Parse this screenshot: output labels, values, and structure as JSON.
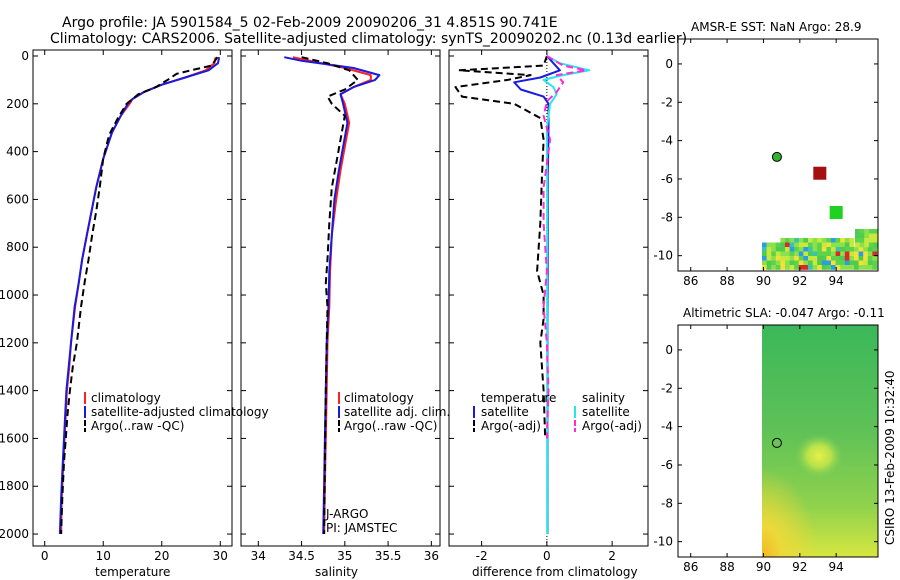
{
  "header": {
    "title1": "Argo profile: JA 5901584_5 02-Feb-2009 20090206_31 4.851S 90.741E",
    "title2": "Climatology: CARS2006. Satellite-adjusted climatology: synTS_20090202.nc (0.13d earlier)"
  },
  "side_label": "CSIRO 13-Feb-2009 10:32:40",
  "colors": {
    "climatology": "#ff2020",
    "satellite": "#1a1adf",
    "argo": "#000000",
    "sal_satellite": "#28e6ea",
    "sal_argo": "#ff2bd6"
  },
  "chart_data": [
    {
      "type": "line",
      "xlabel": "temperature",
      "ylabel": "",
      "xlim": [
        -2,
        32
      ],
      "ylim": [
        2050,
        0
      ],
      "xticks": [
        0,
        10,
        20,
        30
      ],
      "yticks": [
        0,
        200,
        400,
        600,
        800,
        1000,
        1200,
        1400,
        1600,
        1800,
        2000
      ],
      "legend": [
        "climatology",
        "satellite-adjusted climatology",
        "Argo(..raw -QC)"
      ],
      "series": [
        {
          "name": "climatology",
          "style": "solid",
          "color_key": "climatology",
          "x": [
            29.2,
            29,
            27.5,
            24,
            20,
            17,
            15,
            14.5,
            13,
            11.5,
            10,
            8.8,
            8,
            7.2,
            6.4,
            5.8,
            5.2,
            4.5,
            4.2,
            3.8,
            3.6,
            3.4,
            3.2,
            2.9,
            2.8
          ],
          "y": [
            5,
            30,
            60,
            90,
            120,
            150,
            180,
            200,
            250,
            320,
            430,
            550,
            650,
            750,
            850,
            950,
            1050,
            1200,
            1300,
            1400,
            1500,
            1600,
            1700,
            1850,
            2000
          ]
        },
        {
          "name": "satellite-adjusted climatology",
          "style": "solid",
          "color_key": "satellite",
          "x": [
            29.8,
            29.6,
            28,
            24,
            20,
            17,
            15,
            14.2,
            13,
            11.5,
            10,
            8.8,
            8,
            7.2,
            6.4,
            5.8,
            5.1,
            4.5,
            4.1,
            3.7,
            3.5,
            3.3,
            3.1,
            2.8,
            2.6
          ],
          "y": [
            5,
            30,
            60,
            90,
            120,
            150,
            180,
            200,
            250,
            320,
            430,
            550,
            650,
            750,
            850,
            950,
            1050,
            1200,
            1300,
            1400,
            1500,
            1600,
            1700,
            1850,
            2000
          ]
        },
        {
          "name": "Argo(..raw -QC)",
          "style": "dashed",
          "color_key": "argo",
          "x": [
            29.5,
            28.5,
            25,
            22.5,
            21,
            19,
            16,
            14,
            12.5,
            11,
            10,
            9.4,
            8.8,
            8.1,
            7.5,
            6.8,
            6.2,
            5.5,
            4.8,
            4.3,
            3.9,
            3.6,
            3.3,
            3,
            2.8
          ],
          "y": [
            5,
            40,
            60,
            75,
            100,
            130,
            160,
            200,
            260,
            330,
            430,
            550,
            650,
            750,
            850,
            950,
            1050,
            1200,
            1300,
            1400,
            1500,
            1600,
            1700,
            1850,
            2000
          ]
        }
      ]
    },
    {
      "type": "line",
      "xlabel": "salinity",
      "ylabel": "",
      "xlim": [
        33.8,
        36.1
      ],
      "ylim": [
        2050,
        0
      ],
      "xticks": [
        34,
        34.5,
        35,
        35.5,
        36
      ],
      "legend": [
        "climatology",
        "satellite adj. clim.",
        "Argo(..raw -QC)"
      ],
      "notes": [
        "J-ARGO",
        "PI: JAMSTEC"
      ],
      "series": [
        {
          "name": "climatology",
          "style": "solid",
          "color_key": "climatology",
          "x": [
            34.4,
            34.6,
            35,
            35.3,
            35.3,
            35.1,
            34.95,
            35,
            35.05,
            35,
            34.95,
            34.9,
            34.85,
            34.83,
            34.82,
            34.8,
            34.79,
            34.78,
            34.77,
            34.76
          ],
          "y": [
            5,
            20,
            50,
            80,
            100,
            130,
            160,
            200,
            280,
            380,
            480,
            600,
            750,
            900,
            1050,
            1200,
            1400,
            1600,
            1800,
            2000
          ]
        },
        {
          "name": "satellite adj. clim.",
          "style": "solid",
          "color_key": "satellite",
          "x": [
            34.3,
            34.5,
            35.1,
            35.4,
            35.35,
            35.1,
            34.95,
            34.98,
            35.03,
            34.98,
            34.93,
            34.88,
            34.85,
            34.82,
            34.81,
            34.79,
            34.78,
            34.77,
            34.76,
            34.75
          ],
          "y": [
            5,
            20,
            50,
            80,
            100,
            130,
            160,
            200,
            280,
            380,
            480,
            600,
            750,
            900,
            1050,
            1200,
            1400,
            1600,
            1800,
            2000
          ]
        },
        {
          "name": "Argo(..raw -QC)",
          "style": "dashed",
          "color_key": "argo",
          "x": [
            34.5,
            34.8,
            35.05,
            35.15,
            35.0,
            34.8,
            34.85,
            35.0,
            34.95,
            34.9,
            34.85,
            34.82,
            34.8,
            34.78,
            34.8,
            34.79,
            34.78,
            34.77,
            34.76
          ],
          "y": [
            5,
            30,
            60,
            100,
            140,
            170,
            200,
            250,
            350,
            450,
            550,
            700,
            850,
            950,
            1050,
            1200,
            1400,
            1700,
            2000
          ]
        }
      ]
    },
    {
      "type": "line",
      "xlabel": "difference from climatology",
      "ylabel": "",
      "xlim": [
        -3,
        3.1
      ],
      "ylim": [
        2050,
        0
      ],
      "xticks": [
        -2,
        0,
        2
      ],
      "legend": [
        "temperature",
        "satellite",
        "Argo(-adj)",
        "salinity",
        "satellite",
        "Argo(-adj)"
      ],
      "series": [
        {
          "name": "temperature satellite",
          "style": "solid",
          "color_key": "satellite",
          "x": [
            0,
            0.2,
            0.4,
            -0.2,
            -1.0,
            -0.8,
            -0.1,
            0.05,
            0.05,
            0.04,
            0.03,
            0.03,
            0.03,
            0.02,
            0.02,
            0.02,
            0.02,
            0.02
          ],
          "y": [
            0,
            30,
            60,
            90,
            110,
            140,
            170,
            200,
            300,
            400,
            500,
            700,
            900,
            1100,
            1300,
            1500,
            1700,
            2000
          ]
        },
        {
          "name": "temperature Argo(-adj)",
          "style": "dashed",
          "color_key": "argo",
          "x": [
            0,
            -0.1,
            -2.7,
            -0.5,
            -1.2,
            -2.8,
            -2.6,
            -1.0,
            -0.2,
            -0.1,
            -0.15,
            -0.2,
            -0.3,
            -0.1,
            -0.1,
            -0.2,
            -0.1,
            -0.05
          ],
          "y": [
            0,
            40,
            60,
            80,
            100,
            130,
            170,
            200,
            260,
            350,
            500,
            700,
            900,
            1000,
            1100,
            1200,
            1400,
            1600
          ]
        },
        {
          "name": "salinity satellite",
          "style": "solid",
          "color_key": "sal_satellite",
          "x": [
            0,
            0.4,
            1.3,
            0.5,
            -0.1,
            0.2,
            0.3,
            0.1,
            0.0,
            0.0,
            0.01,
            0.01,
            0.01,
            0.01,
            0.01,
            0.01,
            0.01,
            0.01
          ],
          "y": [
            0,
            30,
            60,
            80,
            100,
            130,
            160,
            200,
            300,
            400,
            500,
            700,
            900,
            1100,
            1300,
            1500,
            1700,
            2000
          ]
        },
        {
          "name": "salinity Argo(-adj)",
          "style": "dashed",
          "color_key": "sal_argo",
          "x": [
            0,
            0.5,
            1.2,
            0.3,
            0.5,
            0.3,
            0.0,
            -0.1,
            0.1,
            0.0,
            -0.1,
            -0.1,
            0.0,
            -0.1,
            0.0,
            0.05,
            0.0
          ],
          "y": [
            0,
            40,
            60,
            80,
            110,
            150,
            190,
            250,
            350,
            450,
            550,
            700,
            900,
            1050,
            1200,
            1400,
            1600
          ]
        }
      ]
    },
    {
      "type": "heatmap",
      "title": "AMSR-E SST: NaN Argo: 28.9",
      "xlim": [
        85.3,
        96.3
      ],
      "ylim": [
        -10.8,
        1.3
      ],
      "xticks": [
        86,
        88,
        90,
        92,
        94
      ],
      "yticks": [
        0,
        -2,
        -4,
        -6,
        -8,
        -10
      ],
      "argo_position": [
        90.741,
        -4.851
      ],
      "markers": [
        {
          "lon": 93.1,
          "lat": -5.7,
          "color": "#a50f0f"
        },
        {
          "lon": 94.0,
          "lat": -7.75,
          "color": "#1fd21f"
        }
      ]
    },
    {
      "type": "heatmap",
      "title": "Altimetric SLA: -0.047 Argo: -0.11",
      "xlim": [
        85.3,
        96.3
      ],
      "ylim": [
        -10.8,
        1.3
      ],
      "xticks": [
        86,
        88,
        90,
        92,
        94
      ],
      "yticks": [
        0,
        -2,
        -4,
        -6,
        -8,
        -10
      ],
      "argo_position": [
        90.741,
        -4.851
      ]
    }
  ]
}
